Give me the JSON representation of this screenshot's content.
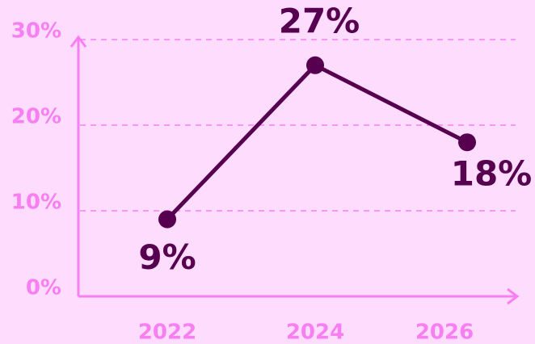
{
  "chart_data": {
    "type": "line",
    "categories": [
      "2022",
      "2024",
      "2026"
    ],
    "series": [
      {
        "color": "#56004f",
        "values": [
          9,
          27,
          18
        ],
        "value_labels": [
          "9%",
          "27%",
          "18%"
        ]
      }
    ],
    "ylim": [
      0,
      30
    ],
    "yticks": [
      {
        "value": 0,
        "label": "0%"
      },
      {
        "value": 10,
        "label": "10%"
      },
      {
        "value": 20,
        "label": "20%"
      },
      {
        "value": 30,
        "label": "30%"
      }
    ],
    "grid": true
  }
}
